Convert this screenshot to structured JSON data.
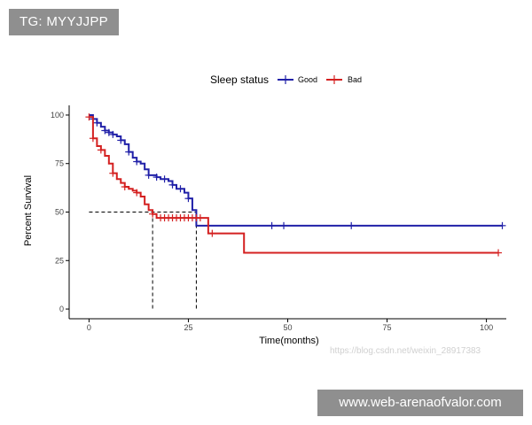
{
  "badges": {
    "top_left": "TG: MYYJJPP",
    "bottom_right": "www.web-arenaofvalor.com"
  },
  "watermark": "https://blog.csdn.net/weixin_28917383",
  "colors": {
    "good": "#2020a8",
    "bad": "#d42020",
    "axis": "#000000",
    "guide": "#000000"
  },
  "chart_data": {
    "type": "line",
    "subtype": "kaplan-meier",
    "title": "",
    "xlabel": "Time(months)",
    "ylabel": "Percent Survival",
    "xlim": [
      -5,
      105
    ],
    "ylim": [
      -5,
      105
    ],
    "xticks": [
      0,
      25,
      50,
      75,
      100
    ],
    "yticks": [
      0,
      25,
      50,
      75,
      100
    ],
    "grid": false,
    "legend": {
      "title": "Sleep status",
      "position": "top",
      "entries": [
        "Good",
        "Bad"
      ]
    },
    "median_guides": {
      "y": 50,
      "x_values": [
        16,
        27
      ]
    },
    "series": [
      {
        "name": "Good",
        "color_key": "good",
        "steps": [
          [
            0,
            100
          ],
          [
            1,
            98
          ],
          [
            2,
            96
          ],
          [
            3,
            94
          ],
          [
            4,
            92
          ],
          [
            5,
            91
          ],
          [
            6,
            90
          ],
          [
            7,
            89
          ],
          [
            8,
            87
          ],
          [
            9,
            85
          ],
          [
            10,
            81
          ],
          [
            11,
            78
          ],
          [
            12,
            76
          ],
          [
            13,
            75
          ],
          [
            14,
            72
          ],
          [
            15,
            69
          ],
          [
            17,
            68
          ],
          [
            18,
            67
          ],
          [
            20,
            66
          ],
          [
            21,
            64
          ],
          [
            22,
            62
          ],
          [
            24,
            60
          ],
          [
            25,
            57
          ],
          [
            26,
            51
          ],
          [
            27,
            43
          ],
          [
            104,
            43
          ]
        ],
        "censored_x": [
          1,
          2,
          4,
          5,
          6,
          8,
          10,
          12,
          15,
          17,
          19,
          21,
          23,
          25,
          46,
          49,
          66,
          104
        ]
      },
      {
        "name": "Bad",
        "color_key": "bad",
        "steps": [
          [
            0,
            99
          ],
          [
            1,
            88
          ],
          [
            2,
            84
          ],
          [
            3,
            82
          ],
          [
            4,
            79
          ],
          [
            5,
            75
          ],
          [
            6,
            70
          ],
          [
            7,
            67
          ],
          [
            8,
            65
          ],
          [
            9,
            63
          ],
          [
            10,
            62
          ],
          [
            11,
            61
          ],
          [
            12,
            60
          ],
          [
            13,
            58
          ],
          [
            14,
            54
          ],
          [
            15,
            51
          ],
          [
            16,
            49
          ],
          [
            17,
            47
          ],
          [
            30,
            39
          ],
          [
            39,
            29
          ],
          [
            103,
            29
          ]
        ],
        "censored_x": [
          0,
          1,
          3,
          6,
          9,
          12,
          16,
          18,
          19,
          20,
          21,
          22,
          23,
          24,
          25,
          26,
          27,
          28,
          31,
          103
        ]
      }
    ]
  }
}
